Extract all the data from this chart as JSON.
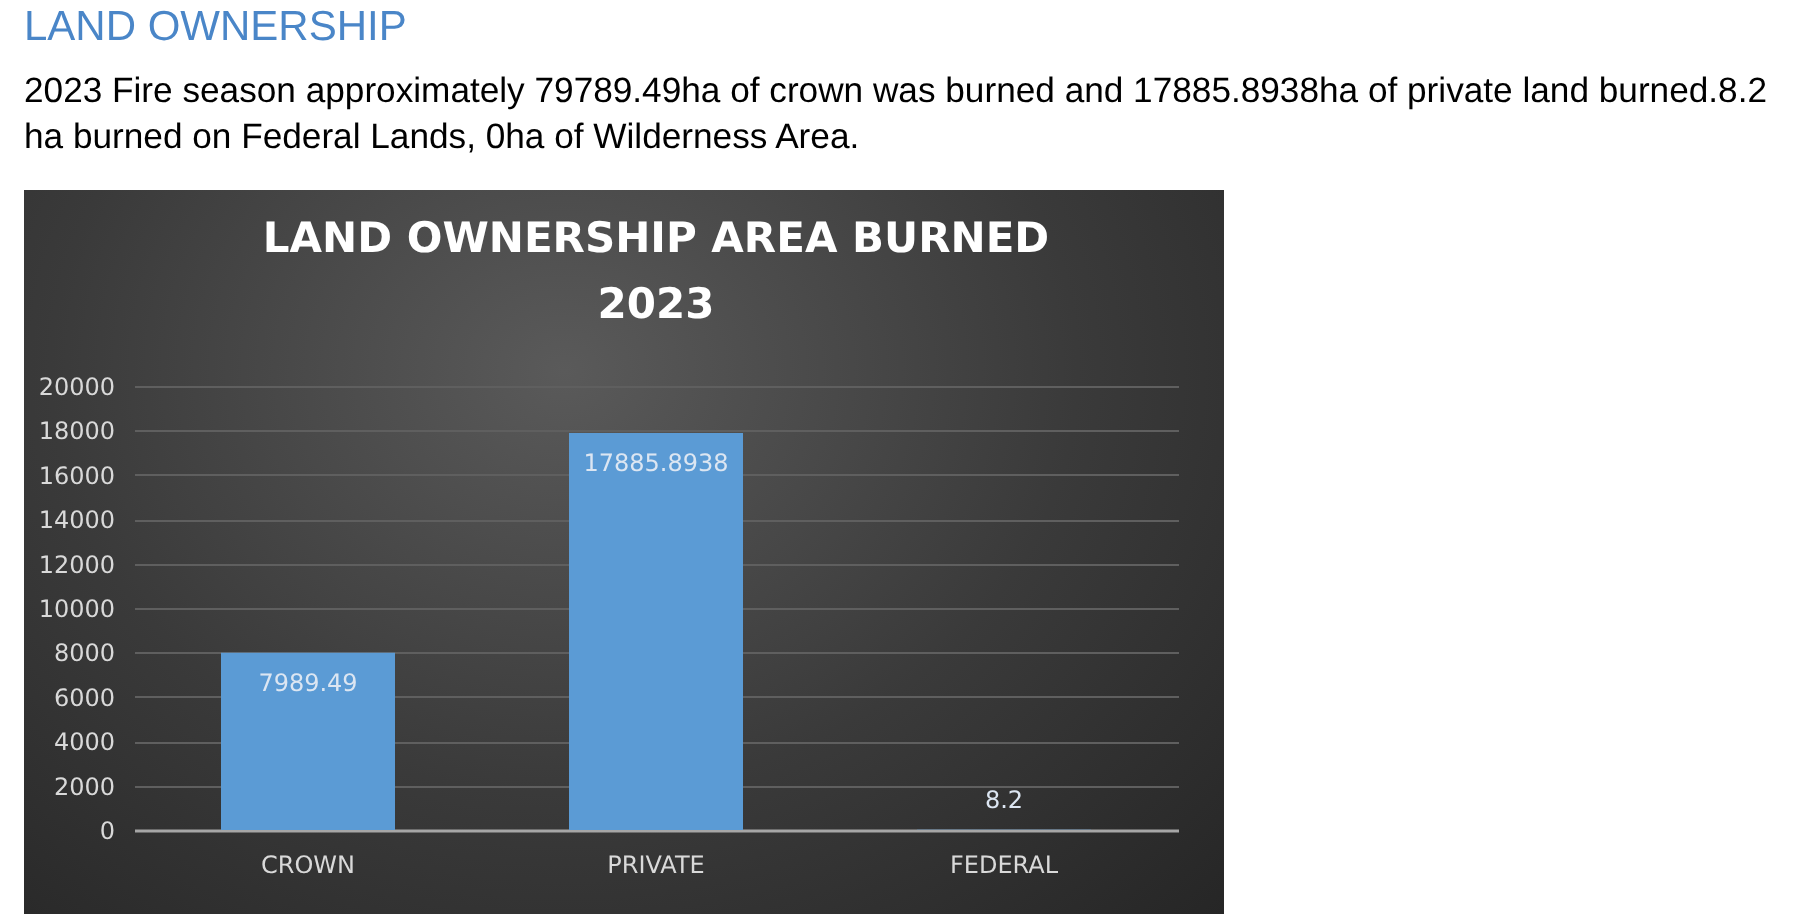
{
  "chart_data": {
    "type": "bar",
    "title": "LAND OWNERSHIP AREA BURNED",
    "subtitle": "2023",
    "annotations": [
      "LAND OWNERSHIP",
      "2023 Fire season approximately 79789.49ha of crown was burned and 17885.8938ha of private land burned.8.2 ha burned on Federal Lands, 0ha of Wilderness Area."
    ],
    "categories": [
      "CROWN",
      "PRIVATE",
      "FEDERAL"
    ],
    "values": [
      7989.49,
      17885.8938,
      8.2
    ],
    "color": "#5b9bd5",
    "ylim": [
      0,
      20000
    ],
    "yticks": [
      0,
      2000,
      4000,
      6000,
      8000,
      10000,
      12000,
      14000,
      16000,
      18000,
      20000
    ],
    "grid": "y",
    "data_labels": true
  }
}
